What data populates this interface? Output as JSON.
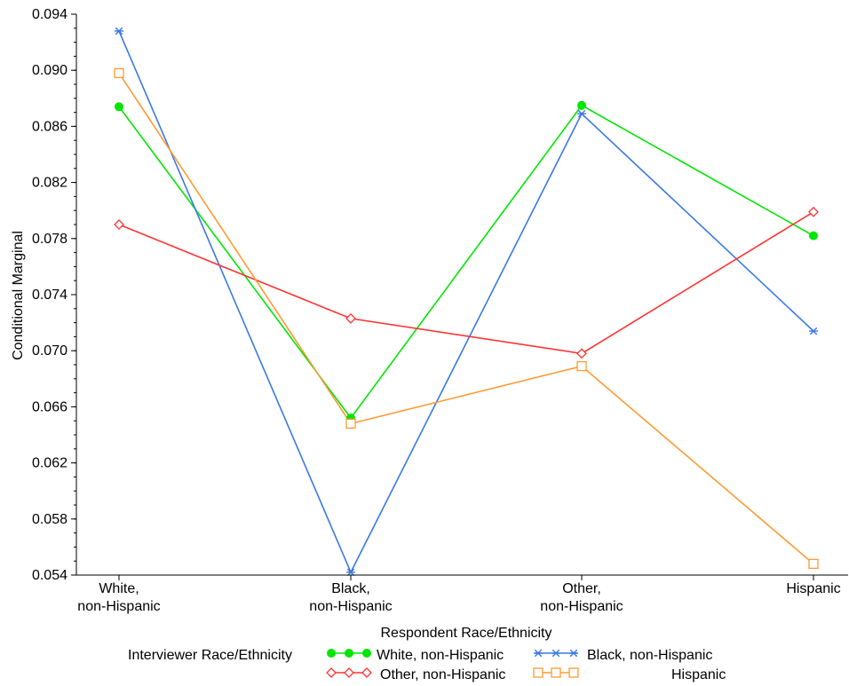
{
  "chart_data": {
    "type": "line",
    "xlabel": "Respondent Race/Ethnicity",
    "ylabel": "Conditional Marginal",
    "categories": [
      [
        "White,",
        "non-Hispanic"
      ],
      [
        "Black,",
        "non-Hispanic"
      ],
      [
        "Other,",
        "non-Hispanic"
      ],
      [
        "Hispanic"
      ]
    ],
    "ylim": [
      0.054,
      0.094
    ],
    "yticks": [
      "0.054",
      "0.058",
      "0.062",
      "0.066",
      "0.070",
      "0.074",
      "0.078",
      "0.082",
      "0.086",
      "0.090",
      "0.094"
    ],
    "grid": false,
    "legend": {
      "title": "Interviewer Race/Ethnicity",
      "placement": "bottom"
    },
    "series": [
      {
        "name": "White, non-Hispanic",
        "color": "#00e600",
        "marker": "filled-circle",
        "values": [
          0.0874,
          0.0652,
          0.0875,
          0.0782
        ]
      },
      {
        "name": "Black, non-Hispanic",
        "color": "#3b78e6",
        "marker": "star",
        "values": [
          0.0928,
          0.0542,
          0.0869,
          0.0714
        ]
      },
      {
        "name": "Other, non-Hispanic",
        "color": "#ff3333",
        "marker": "diamond",
        "values": [
          0.079,
          0.0723,
          0.0698,
          0.0799
        ]
      },
      {
        "name": "Hispanic",
        "color": "#ff9a33",
        "marker": "square",
        "values": [
          0.0898,
          0.0648,
          0.0689,
          0.0548
        ]
      }
    ]
  }
}
